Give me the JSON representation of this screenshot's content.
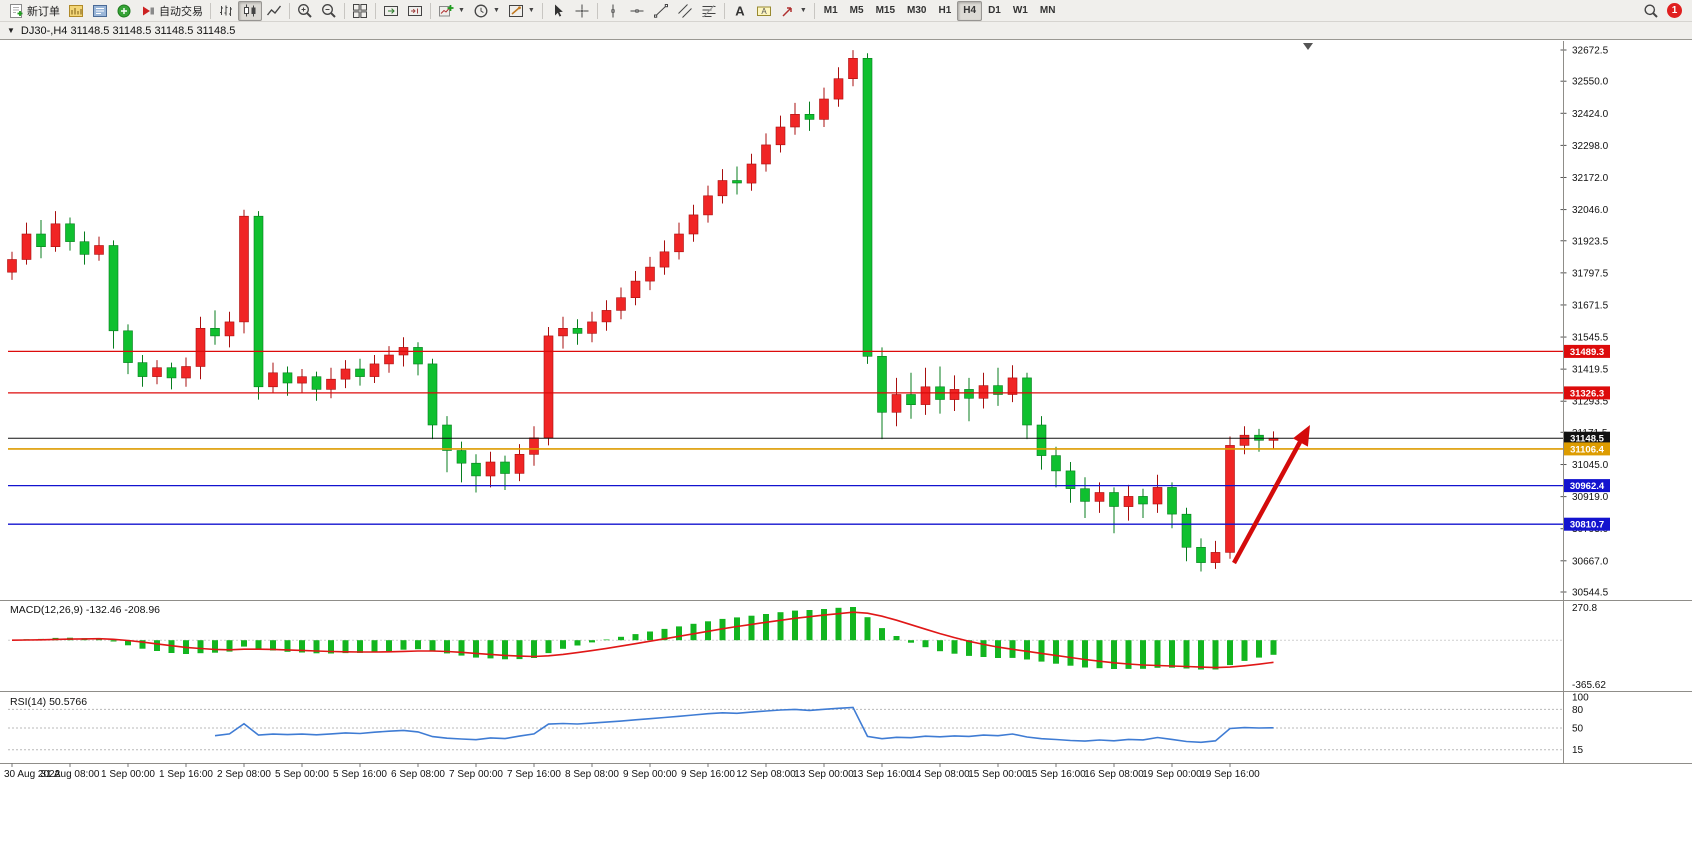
{
  "toolbar": {
    "groups": [
      {
        "items": [
          {
            "name": "new-order-button",
            "icon": "new-order-icon",
            "label": "新订单"
          },
          {
            "name": "market-watch-button",
            "icon": "market-watch-icon"
          },
          {
            "name": "navigator-button",
            "icon": "navigator-icon"
          },
          {
            "name": "terminal-button",
            "icon": "terminal-icon"
          },
          {
            "name": "auto-trading-button",
            "icon": "auto-trading-icon",
            "label": "自动交易"
          }
        ]
      },
      {
        "items": [
          {
            "name": "bar-chart-button",
            "icon": "bar-chart-icon"
          },
          {
            "name": "candlestick-chart-button",
            "icon": "candlestick-chart-icon",
            "active": true
          },
          {
            "name": "line-chart-button",
            "icon": "line-chart-icon"
          }
        ]
      },
      {
        "items": [
          {
            "name": "zoom-in-button",
            "icon": "zoom-in-icon"
          },
          {
            "name": "zoom-out-button",
            "icon": "zoom-out-icon"
          }
        ]
      },
      {
        "items": [
          {
            "name": "tile-windows-button",
            "icon": "tile-windows-icon"
          }
        ]
      },
      {
        "items": [
          {
            "name": "auto-scroll-button",
            "icon": "auto-scroll-icon"
          },
          {
            "name": "chart-shift-button",
            "icon": "chart-shift-icon"
          }
        ]
      },
      {
        "items": [
          {
            "name": "indicators-button",
            "icon": "indicators-icon",
            "caret": true
          },
          {
            "name": "periods-button",
            "icon": "periods-icon",
            "caret": true
          },
          {
            "name": "templates-button",
            "icon": "templates-icon",
            "caret": true
          }
        ]
      },
      {
        "items": [
          {
            "name": "cursor-button",
            "icon": "cursor-icon"
          },
          {
            "name": "crosshair-button",
            "icon": "crosshair-icon"
          }
        ]
      },
      {
        "items": [
          {
            "name": "vertical-line-button",
            "icon": "vertical-line-icon"
          },
          {
            "name": "horizontal-line-button",
            "icon": "horizontal-line-icon"
          },
          {
            "name": "trendline-button",
            "icon": "trendline-icon"
          },
          {
            "name": "channel-button",
            "icon": "channel-icon"
          },
          {
            "name": "fibonacci-button",
            "icon": "fibonacci-icon"
          }
        ]
      },
      {
        "items": [
          {
            "name": "text-button",
            "icon": "text-icon"
          },
          {
            "name": "text-label-button",
            "icon": "text-label-icon"
          },
          {
            "name": "arrows-button",
            "icon": "arrows-icon",
            "caret": true
          }
        ]
      },
      {
        "items": [
          {
            "type": "tf",
            "label": "M1"
          },
          {
            "type": "tf",
            "label": "M5"
          },
          {
            "type": "tf",
            "label": "M15"
          },
          {
            "type": "tf",
            "label": "M30"
          },
          {
            "type": "tf",
            "label": "H1"
          },
          {
            "type": "tf",
            "label": "H4",
            "active": true
          },
          {
            "type": "tf",
            "label": "D1"
          },
          {
            "type": "tf",
            "label": "W1"
          },
          {
            "type": "tf",
            "label": "MN"
          }
        ]
      }
    ],
    "right_items": [
      {
        "name": "search-button",
        "icon": "search-icon"
      }
    ],
    "notification_count": "1"
  },
  "chart": {
    "title": "DJ30-,H4 31148.5 31148.5 31148.5 31148.5"
  },
  "chart_data": {
    "type": "candlestick",
    "symbol": "DJ30-",
    "period": "H4",
    "price_axis_ticks": [
      "32672.5",
      "32550.0",
      "32424.0",
      "32298.0",
      "32172.0",
      "32046.0",
      "31923.5",
      "31797.5",
      "31671.5",
      "31545.5",
      "31419.5",
      "31293.5",
      "31171.5",
      "31045.0",
      "30919.0",
      "30793.0",
      "30667.0",
      "30544.5"
    ],
    "hlines": [
      {
        "price": 31489.3,
        "label": "31489.3",
        "color": "#dd0b0b",
        "width": 1.3
      },
      {
        "price": 31326.3,
        "label": "31326.3",
        "color": "#dd0b0b",
        "width": 1.3
      },
      {
        "price": 31148.5,
        "label": "31148.5",
        "color": "#111111",
        "width": 1
      },
      {
        "price": 31106.4,
        "label": "31106.4",
        "color": "#dd9c00",
        "width": 1.6
      },
      {
        "price": 30962.4,
        "label": "30962.4",
        "color": "#1313cf",
        "width": 1.3
      },
      {
        "price": 30810.7,
        "label": "30810.7",
        "color": "#1313cf",
        "width": 1.3
      }
    ],
    "annotation_arrow": {
      "color": "#d40b0b"
    },
    "colors": {
      "up": "#f02525",
      "up_dark": "#a80f0f",
      "down": "#0fc02f",
      "down_dark": "#077d1e",
      "macd_hist": "#12b51f",
      "macd_signal": "#e01717",
      "rsi": "#3f7cd4",
      "background": "#ffffff"
    },
    "candles": [
      [
        31800,
        31880,
        31770,
        31850
      ],
      [
        31850,
        31995,
        31830,
        31950
      ],
      [
        31950,
        32005,
        31855,
        31900
      ],
      [
        31900,
        32040,
        31880,
        31990
      ],
      [
        31990,
        32015,
        31885,
        31920
      ],
      [
        31920,
        31960,
        31830,
        31870
      ],
      [
        31870,
        31940,
        31845,
        31905
      ],
      [
        31905,
        31925,
        31500,
        31570
      ],
      [
        31570,
        31595,
        31400,
        31445
      ],
      [
        31445,
        31475,
        31350,
        31390
      ],
      [
        31390,
        31455,
        31360,
        31425
      ],
      [
        31425,
        31445,
        31340,
        31385
      ],
      [
        31385,
        31465,
        31350,
        31430
      ],
      [
        31430,
        31625,
        31380,
        31580
      ],
      [
        31580,
        31650,
        31515,
        31550
      ],
      [
        31550,
        31645,
        31505,
        31605
      ],
      [
        31605,
        32045,
        31560,
        32020
      ],
      [
        32020,
        32040,
        31300,
        31350
      ],
      [
        31350,
        31445,
        31325,
        31405
      ],
      [
        31405,
        31430,
        31315,
        31365
      ],
      [
        31365,
        31420,
        31325,
        31390
      ],
      [
        31390,
        31410,
        31295,
        31340
      ],
      [
        31340,
        31425,
        31305,
        31380
      ],
      [
        31380,
        31455,
        31345,
        31420
      ],
      [
        31420,
        31460,
        31355,
        31390
      ],
      [
        31390,
        31475,
        31365,
        31440
      ],
      [
        31440,
        31510,
        31405,
        31475
      ],
      [
        31475,
        31545,
        31430,
        31505
      ],
      [
        31505,
        31525,
        31395,
        31440
      ],
      [
        31440,
        31460,
        31145,
        31200
      ],
      [
        31200,
        31235,
        31015,
        31100
      ],
      [
        31100,
        31135,
        30975,
        31050
      ],
      [
        31050,
        31085,
        30935,
        31000
      ],
      [
        31000,
        31095,
        30955,
        31055
      ],
      [
        31055,
        31080,
        30945,
        31010
      ],
      [
        31010,
        31125,
        30980,
        31085
      ],
      [
        31085,
        31195,
        31040,
        31150
      ],
      [
        31150,
        31585,
        31120,
        31550
      ],
      [
        31550,
        31625,
        31500,
        31580
      ],
      [
        31580,
        31615,
        31515,
        31560
      ],
      [
        31560,
        31645,
        31525,
        31605
      ],
      [
        31605,
        31690,
        31570,
        31650
      ],
      [
        31650,
        31740,
        31615,
        31700
      ],
      [
        31700,
        31805,
        31670,
        31765
      ],
      [
        31765,
        31860,
        31730,
        31820
      ],
      [
        31820,
        31925,
        31790,
        31880
      ],
      [
        31880,
        31995,
        31850,
        31950
      ],
      [
        31950,
        32065,
        31920,
        32025
      ],
      [
        32025,
        32140,
        31995,
        32100
      ],
      [
        32100,
        32205,
        32070,
        32160
      ],
      [
        32160,
        32215,
        32105,
        32150
      ],
      [
        32150,
        32265,
        32120,
        32225
      ],
      [
        32225,
        32345,
        32195,
        32300
      ],
      [
        32300,
        32415,
        32270,
        32370
      ],
      [
        32370,
        32465,
        32340,
        32420
      ],
      [
        32420,
        32470,
        32355,
        32400
      ],
      [
        32400,
        32525,
        32370,
        32480
      ],
      [
        32480,
        32605,
        32450,
        32560
      ],
      [
        32560,
        32672,
        32530,
        32640
      ],
      [
        32640,
        32660,
        31440,
        31470
      ],
      [
        31470,
        31505,
        31145,
        31250
      ],
      [
        31250,
        31385,
        31195,
        31320
      ],
      [
        31320,
        31405,
        31225,
        31280
      ],
      [
        31280,
        31425,
        31240,
        31350
      ],
      [
        31350,
        31430,
        31245,
        31300
      ],
      [
        31300,
        31395,
        31255,
        31340
      ],
      [
        31340,
        31385,
        31215,
        31305
      ],
      [
        31305,
        31405,
        31265,
        31355
      ],
      [
        31355,
        31425,
        31275,
        31320
      ],
      [
        31320,
        31435,
        31290,
        31385
      ],
      [
        31385,
        31405,
        31145,
        31200
      ],
      [
        31200,
        31235,
        31025,
        31080
      ],
      [
        31080,
        31115,
        30955,
        31020
      ],
      [
        31020,
        31055,
        30895,
        30950
      ],
      [
        30950,
        30995,
        30835,
        30900
      ],
      [
        30900,
        30975,
        30855,
        30935
      ],
      [
        30935,
        30955,
        30775,
        30880
      ],
      [
        30880,
        30965,
        30825,
        30920
      ],
      [
        30920,
        30950,
        30835,
        30890
      ],
      [
        30890,
        31005,
        30855,
        30955
      ],
      [
        30955,
        30975,
        30795,
        30850
      ],
      [
        30850,
        30875,
        30665,
        30720
      ],
      [
        30720,
        30755,
        30625,
        30660
      ],
      [
        30660,
        30745,
        30635,
        30700
      ],
      [
        30700,
        31155,
        30675,
        31120
      ],
      [
        31120,
        31195,
        31085,
        31160
      ],
      [
        31160,
        31185,
        31095,
        31140
      ],
      [
        31140,
        31175,
        31105,
        31148.5
      ]
    ],
    "time_labels": [
      {
        "i": 0,
        "label": "30 Aug 2022"
      },
      {
        "i": 4,
        "label": "31 Aug 08:00"
      },
      {
        "i": 8,
        "label": "1 Sep 00:00"
      },
      {
        "i": 12,
        "label": "1 Sep 16:00"
      },
      {
        "i": 16,
        "label": "2 Sep 08:00"
      },
      {
        "i": 20,
        "label": "5 Sep 00:00"
      },
      {
        "i": 24,
        "label": "5 Sep 16:00"
      },
      {
        "i": 28,
        "label": "6 Sep 08:00"
      },
      {
        "i": 32,
        "label": "7 Sep 00:00"
      },
      {
        "i": 36,
        "label": "7 Sep 16:00"
      },
      {
        "i": 40,
        "label": "8 Sep 08:00"
      },
      {
        "i": 44,
        "label": "9 Sep 00:00"
      },
      {
        "i": 48,
        "label": "9 Sep 16:00"
      },
      {
        "i": 52,
        "label": "12 Sep 08:00"
      },
      {
        "i": 56,
        "label": "13 Sep 00:00"
      },
      {
        "i": 60,
        "label": "13 Sep 16:00"
      },
      {
        "i": 64,
        "label": "14 Sep 08:00"
      },
      {
        "i": 68,
        "label": "15 Sep 00:00"
      },
      {
        "i": 72,
        "label": "15 Sep 16:00"
      },
      {
        "i": 76,
        "label": "16 Sep 08:00"
      },
      {
        "i": 80,
        "label": "19 Sep 00:00"
      },
      {
        "i": 84,
        "label": "19 Sep 16:00"
      }
    ],
    "indicators": {
      "macd": {
        "label": "MACD(12,26,9)",
        "values_text": "-132.46 -208.96",
        "axis": [
          "270.8",
          "-365.62"
        ]
      },
      "rsi": {
        "label": "RSI(14)",
        "value_text": "50.5766",
        "period": 14,
        "axis": [
          "100",
          "80",
          "50",
          "15"
        ],
        "levels": [
          80,
          50,
          15
        ]
      }
    }
  }
}
